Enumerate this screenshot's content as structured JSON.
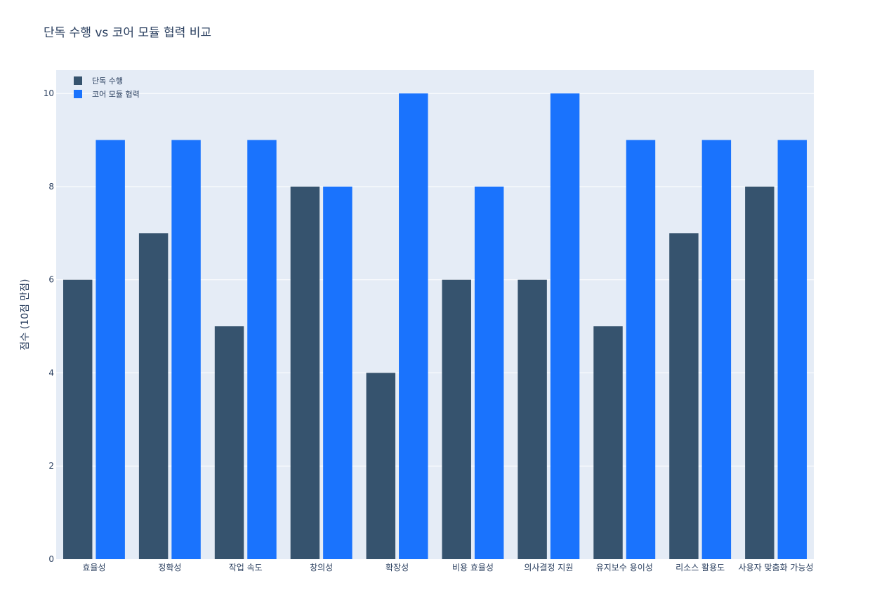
{
  "chart_data": {
    "type": "bar",
    "title": "단독 수행 vs 코어 모듈 협력 비교",
    "xlabel": "",
    "ylabel": "점수 (10점 만점)",
    "ylim": [
      0,
      10.5
    ],
    "yticks": [
      0,
      2,
      4,
      6,
      8,
      10
    ],
    "grid": true,
    "legend_position": "top-left",
    "categories": [
      "효율성",
      "정확성",
      "작업 속도",
      "창의성",
      "확장성",
      "비용 효율성",
      "의사결정 지원",
      "유지보수 용이성",
      "리소스 활용도",
      "사용자 맞춤화 가능성"
    ],
    "series": [
      {
        "name": "단독 수행",
        "color": "#36536e",
        "values": [
          6,
          7,
          5,
          8,
          4,
          6,
          6,
          5,
          7,
          8
        ]
      },
      {
        "name": "코어 모듈 협력",
        "color": "#1a73fd",
        "values": [
          9,
          9,
          9,
          8,
          10,
          8,
          10,
          9,
          9,
          9
        ]
      }
    ]
  },
  "colors": {
    "plot_background": "#e5ecf6",
    "grid": "#ffffff",
    "text": "#2a3f5f"
  }
}
